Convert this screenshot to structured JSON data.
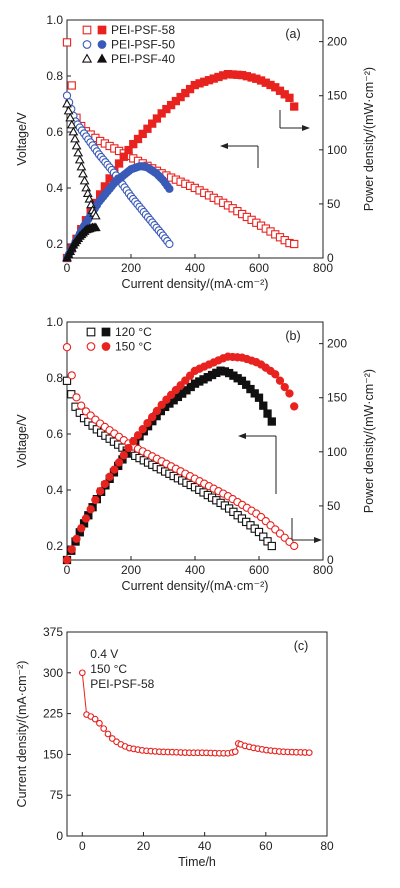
{
  "colors": {
    "red": "#e8231f",
    "blue": "#3a5ab8",
    "black": "#111111",
    "axis": "#222222"
  },
  "chart_data": [
    {
      "panel": "(a)",
      "type": "line",
      "xlabel": "Current density/(mA·cm⁻²)",
      "ylabel_left": "Voltage/V",
      "ylabel_right": "Power density/(mW·cm⁻²)",
      "xlim": [
        0,
        800
      ],
      "ylim_left": [
        0.15,
        1.0
      ],
      "ylim_right": [
        0,
        220
      ],
      "xticks": [
        0,
        200,
        400,
        600,
        800
      ],
      "yticks_left": [
        0.2,
        0.4,
        0.6,
        0.8,
        1.0
      ],
      "yticks_right": [
        0,
        50,
        100,
        150,
        200
      ],
      "legend_position": "top-left",
      "legend": [
        "PEI-PSF-58",
        "PEI-PSF-50",
        "PEI-PSF-40"
      ],
      "series": [
        {
          "name": "PEI-PSF-58",
          "color": "#e8231f",
          "marker": "square",
          "axis": "left",
          "filled": false,
          "x": [
            0,
            25,
            50,
            100,
            150,
            200,
            300,
            400,
            500,
            600,
            700,
            710
          ],
          "y": [
            0.92,
            0.66,
            0.61,
            0.57,
            0.54,
            0.51,
            0.45,
            0.4,
            0.34,
            0.27,
            0.2,
            0.2
          ]
        },
        {
          "name": "PEI-PSF-58",
          "color": "#e8231f",
          "marker": "square",
          "axis": "right",
          "filled": true,
          "x": [
            0,
            50,
            100,
            150,
            200,
            300,
            400,
            500,
            550,
            600,
            650,
            700,
            710
          ],
          "y": [
            0,
            30,
            57,
            82,
            103,
            135,
            160,
            170,
            169,
            165,
            158,
            147,
            140
          ]
        },
        {
          "name": "PEI-PSF-50",
          "color": "#3a5ab8",
          "marker": "circle",
          "axis": "left",
          "filled": false,
          "x": [
            0,
            25,
            50,
            100,
            150,
            200,
            250,
            300,
            320
          ],
          "y": [
            0.73,
            0.64,
            0.6,
            0.52,
            0.45,
            0.37,
            0.3,
            0.23,
            0.2
          ]
        },
        {
          "name": "PEI-PSF-50",
          "color": "#3a5ab8",
          "marker": "circle",
          "axis": "right",
          "filled": true,
          "x": [
            0,
            50,
            100,
            150,
            200,
            230,
            250,
            280,
            300,
            320
          ],
          "y": [
            0,
            28,
            52,
            70,
            82,
            85,
            84,
            78,
            72,
            64
          ]
        },
        {
          "name": "PEI-PSF-40",
          "color": "#111111",
          "marker": "triangle",
          "axis": "left",
          "filled": false,
          "x": [
            0,
            20,
            40,
            60,
            80,
            90
          ],
          "y": [
            0.7,
            0.6,
            0.5,
            0.4,
            0.32,
            0.3
          ]
        },
        {
          "name": "PEI-PSF-40",
          "color": "#111111",
          "marker": "triangle",
          "axis": "right",
          "filled": true,
          "x": [
            0,
            20,
            40,
            60,
            80,
            90
          ],
          "y": [
            0,
            12,
            20,
            26,
            28,
            28
          ]
        }
      ]
    },
    {
      "panel": "(b)",
      "type": "line",
      "xlabel": "Current density/(mA·cm⁻²)",
      "ylabel_left": "Voltage/V",
      "ylabel_right": "Power density/(mW·cm⁻²)",
      "xlim": [
        0,
        800
      ],
      "ylim_left": [
        0.15,
        1.0
      ],
      "ylim_right": [
        0,
        220
      ],
      "xticks": [
        0,
        200,
        400,
        600,
        800
      ],
      "yticks_left": [
        0.2,
        0.4,
        0.6,
        0.8,
        1.0
      ],
      "yticks_right": [
        0,
        50,
        100,
        150,
        200
      ],
      "legend_position": "top-left",
      "legend": [
        "120 °C",
        "150 °C"
      ],
      "series": [
        {
          "name": "120 °C",
          "color": "#111111",
          "marker": "square",
          "axis": "left",
          "filled": false,
          "x": [
            0,
            25,
            50,
            100,
            150,
            200,
            300,
            400,
            500,
            600,
            640
          ],
          "y": [
            0.79,
            0.7,
            0.66,
            0.61,
            0.57,
            0.53,
            0.47,
            0.41,
            0.34,
            0.25,
            0.2
          ]
        },
        {
          "name": "120 °C",
          "color": "#111111",
          "marker": "square",
          "axis": "right",
          "filled": true,
          "x": [
            0,
            50,
            100,
            200,
            300,
            400,
            480,
            500,
            550,
            600,
            640
          ],
          "y": [
            0,
            32,
            60,
            105,
            140,
            163,
            175,
            174,
            165,
            150,
            128
          ]
        },
        {
          "name": "150 °C",
          "color": "#e8231f",
          "marker": "circle",
          "axis": "left",
          "filled": false,
          "x": [
            0,
            25,
            50,
            100,
            150,
            200,
            300,
            400,
            500,
            600,
            710
          ],
          "y": [
            0.91,
            0.74,
            0.69,
            0.64,
            0.6,
            0.56,
            0.5,
            0.44,
            0.38,
            0.31,
            0.2
          ]
        },
        {
          "name": "150 °C",
          "color": "#e8231f",
          "marker": "circle",
          "axis": "right",
          "filled": true,
          "x": [
            0,
            50,
            100,
            200,
            300,
            400,
            500,
            550,
            600,
            650,
            700,
            710
          ],
          "y": [
            0,
            33,
            62,
            107,
            145,
            175,
            188,
            187,
            182,
            172,
            152,
            142
          ]
        }
      ]
    },
    {
      "panel": "(c)",
      "type": "line",
      "xlabel": "Time/h",
      "ylabel": "Current density/(mA·cm⁻²)",
      "xlim": [
        -5,
        80
      ],
      "ylim": [
        0,
        375
      ],
      "xticks": [
        0,
        20,
        40,
        60,
        80
      ],
      "yticks": [
        0,
        75,
        150,
        225,
        300,
        375
      ],
      "annotations": [
        "0.4 V",
        "150 °C",
        "PEI-PSF-58"
      ],
      "series": [
        {
          "name": "PEI-PSF-58",
          "color": "#e8231f",
          "marker": "circle",
          "filled": false,
          "x": [
            0,
            0.5,
            2,
            4,
            6,
            8,
            10,
            12,
            15,
            20,
            25,
            30,
            35,
            40,
            45,
            48,
            50,
            51,
            53,
            56,
            60,
            65,
            70,
            75
          ],
          "y": [
            300,
            225,
            222,
            216,
            205,
            190,
            178,
            170,
            162,
            157,
            155,
            154,
            153,
            153,
            152,
            152,
            155,
            170,
            166,
            162,
            158,
            155,
            154,
            153
          ]
        }
      ]
    }
  ]
}
